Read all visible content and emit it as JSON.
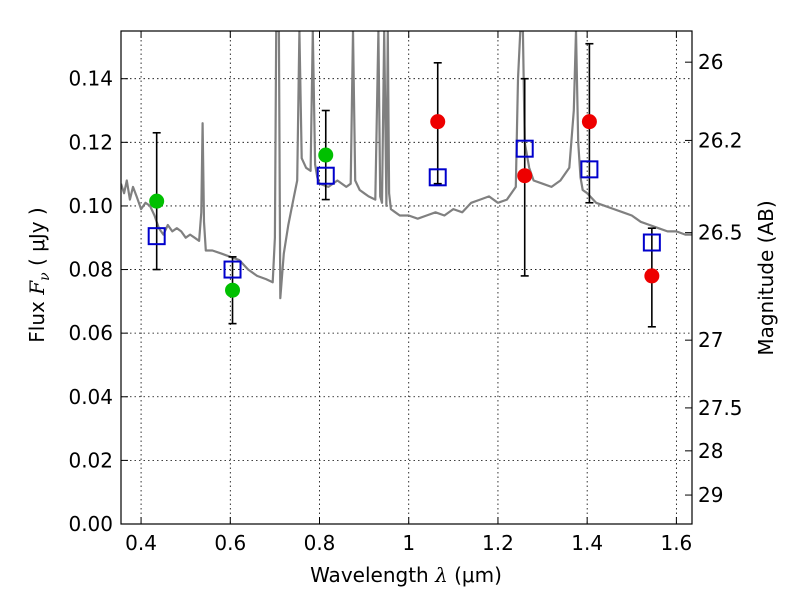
{
  "chart_data": {
    "type": "scatter",
    "xlabel": {
      "prefix": "Wavelength ",
      "symbol": "λ",
      "units": " (μm)"
    },
    "ylabel": {
      "prefix": "Flux ",
      "symbol": "F",
      "subscript": "ν",
      "units": " ( μJy )"
    },
    "y2label": "Magnitude (AB)",
    "xlim": [
      0.355,
      1.635
    ],
    "ylim": [
      0.0,
      0.155
    ],
    "grid": true,
    "x_ticks": [
      0.4,
      0.6,
      0.8,
      1.0,
      1.2,
      1.4,
      1.6
    ],
    "x_tick_labels": [
      "0.4",
      "0.6",
      "0.8",
      "1",
      "1.2",
      "1.4",
      "1.6"
    ],
    "y_ticks": [
      0.0,
      0.02,
      0.04,
      0.06,
      0.08,
      0.1,
      0.12,
      0.14
    ],
    "y_tick_labels": [
      "0.00",
      "0.02",
      "0.04",
      "0.06",
      "0.08",
      "0.10",
      "0.12",
      "0.14"
    ],
    "y2_ticks": [
      {
        "flux": 0.1452,
        "label": "26"
      },
      {
        "flux": 0.1206,
        "label": "26.2"
      },
      {
        "flux": 0.0916,
        "label": "26.5"
      },
      {
        "flux": 0.0578,
        "label": "27"
      },
      {
        "flux": 0.0365,
        "label": "27.5"
      },
      {
        "flux": 0.023,
        "label": "28"
      },
      {
        "flux": 0.0091,
        "label": "29"
      }
    ],
    "series": [
      {
        "name": "model-spectrum",
        "kind": "line",
        "color": "#808080",
        "x": [
          0.355,
          0.362,
          0.368,
          0.375,
          0.382,
          0.39,
          0.4,
          0.41,
          0.42,
          0.43,
          0.44,
          0.45,
          0.46,
          0.47,
          0.48,
          0.49,
          0.5,
          0.51,
          0.52,
          0.53,
          0.535,
          0.538,
          0.541,
          0.545,
          0.56,
          0.58,
          0.6,
          0.62,
          0.64,
          0.66,
          0.68,
          0.695,
          0.7,
          0.703,
          0.706,
          0.709,
          0.712,
          0.72,
          0.73,
          0.74,
          0.75,
          0.755,
          0.76,
          0.77,
          0.78,
          0.785,
          0.79,
          0.795,
          0.8,
          0.82,
          0.84,
          0.86,
          0.87,
          0.875,
          0.88,
          0.89,
          0.9,
          0.91,
          0.925,
          0.932,
          0.936,
          0.94,
          0.945,
          0.95,
          0.953,
          0.956,
          0.96,
          0.97,
          0.98,
          1.0,
          1.02,
          1.04,
          1.06,
          1.08,
          1.1,
          1.12,
          1.14,
          1.16,
          1.18,
          1.2,
          1.22,
          1.24,
          1.245,
          1.25,
          1.253,
          1.256,
          1.26,
          1.27,
          1.28,
          1.3,
          1.32,
          1.34,
          1.36,
          1.37,
          1.375,
          1.38,
          1.385,
          1.39,
          1.4,
          1.42,
          1.44,
          1.46,
          1.48,
          1.5,
          1.52,
          1.54,
          1.56,
          1.58,
          1.6,
          1.62,
          1.635
        ],
        "y": [
          0.107,
          0.104,
          0.108,
          0.102,
          0.106,
          0.103,
          0.099,
          0.101,
          0.1,
          0.097,
          0.093,
          0.091,
          0.094,
          0.092,
          0.093,
          0.092,
          0.09,
          0.091,
          0.09,
          0.089,
          0.098,
          0.126,
          0.095,
          0.086,
          0.086,
          0.085,
          0.084,
          0.083,
          0.08,
          0.078,
          0.077,
          0.076,
          0.09,
          0.155,
          0.155,
          0.155,
          0.071,
          0.085,
          0.094,
          0.101,
          0.108,
          0.155,
          0.115,
          0.112,
          0.111,
          0.155,
          0.113,
          0.109,
          0.107,
          0.106,
          0.108,
          0.106,
          0.107,
          0.155,
          0.108,
          0.105,
          0.104,
          0.103,
          0.102,
          0.155,
          0.103,
          0.101,
          0.155,
          0.1,
          0.155,
          0.104,
          0.099,
          0.098,
          0.097,
          0.097,
          0.096,
          0.097,
          0.098,
          0.097,
          0.099,
          0.098,
          0.101,
          0.102,
          0.103,
          0.101,
          0.102,
          0.106,
          0.14,
          0.155,
          0.155,
          0.155,
          0.12,
          0.112,
          0.108,
          0.107,
          0.106,
          0.108,
          0.112,
          0.13,
          0.155,
          0.12,
          0.109,
          0.105,
          0.104,
          0.101,
          0.1,
          0.099,
          0.098,
          0.097,
          0.095,
          0.094,
          0.093,
          0.092,
          0.092,
          0.091,
          0.091
        ]
      },
      {
        "name": "observed-flux",
        "kind": "errorbar",
        "color": "#000000",
        "points": [
          {
            "x": 0.435,
            "y": 0.09,
            "yerr_low": 0.08,
            "yerr_high": 0.123
          },
          {
            "x": 0.605,
            "y": 0.08,
            "yerr_low": 0.063,
            "yerr_high": 0.084
          },
          {
            "x": 0.814,
            "y": 0.11,
            "yerr_low": 0.102,
            "yerr_high": 0.13
          },
          {
            "x": 1.065,
            "y": 0.109,
            "yerr_low": 0.107,
            "yerr_high": 0.145
          },
          {
            "x": 1.26,
            "y": 0.118,
            "yerr_low": 0.078,
            "yerr_high": 0.14
          },
          {
            "x": 1.405,
            "y": 0.111,
            "yerr_low": 0.101,
            "yerr_high": 0.151
          },
          {
            "x": 1.545,
            "y": 0.088,
            "yerr_low": 0.062,
            "yerr_high": 0.093
          }
        ]
      },
      {
        "name": "model-band-flux",
        "kind": "open-square",
        "color": "#0000cc",
        "points": [
          {
            "x": 0.435,
            "y": 0.0905
          },
          {
            "x": 0.605,
            "y": 0.08
          },
          {
            "x": 0.814,
            "y": 0.1095
          },
          {
            "x": 1.065,
            "y": 0.109
          },
          {
            "x": 1.26,
            "y": 0.118
          },
          {
            "x": 1.405,
            "y": 0.1115
          },
          {
            "x": 1.545,
            "y": 0.0885
          }
        ]
      },
      {
        "name": "measured-green",
        "kind": "filled-circle",
        "color": "#00c000",
        "points": [
          {
            "x": 0.435,
            "y": 0.1015
          },
          {
            "x": 0.605,
            "y": 0.0735
          },
          {
            "x": 0.814,
            "y": 0.116
          }
        ]
      },
      {
        "name": "measured-red",
        "kind": "filled-circle",
        "color": "#ee0000",
        "points": [
          {
            "x": 1.065,
            "y": 0.1265
          },
          {
            "x": 1.26,
            "y": 0.1095
          },
          {
            "x": 1.405,
            "y": 0.1265
          },
          {
            "x": 1.545,
            "y": 0.078
          }
        ]
      }
    ]
  }
}
